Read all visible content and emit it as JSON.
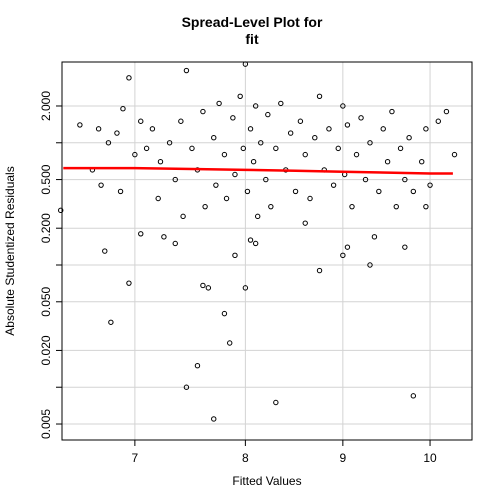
{
  "chart_data": {
    "type": "scatter",
    "title": "Spread-Level Plot for\nfit",
    "xlabel": "Fitted Values",
    "ylabel": "Absolute Studentized Residuals",
    "xlog": true,
    "ylog": true,
    "grid": true,
    "xlim": [
      6.41,
      10.52
    ],
    "ylim": [
      0.0037,
      4.58
    ],
    "xticks": [
      7,
      8,
      9,
      10
    ],
    "yticks": [
      {
        "value": 0.005,
        "label": "0.005"
      },
      {
        "value": 0.01,
        "label": null
      },
      {
        "value": 0.02,
        "label": "0.020"
      },
      {
        "value": 0.05,
        "label": "0.050"
      },
      {
        "value": 0.1,
        "label": null
      },
      {
        "value": 0.2,
        "label": "0.200"
      },
      {
        "value": 0.5,
        "label": "0.500"
      },
      {
        "value": 1,
        "label": null
      },
      {
        "value": 2,
        "label": "2.000"
      }
    ],
    "series": [
      {
        "type": "scatter",
        "color": "#000000",
        "x": [
          6.55,
          6.65,
          6.7,
          6.72,
          6.78,
          6.85,
          6.9,
          6.88,
          7.0,
          7.05,
          7.1,
          7.15,
          7.2,
          7.22,
          7.3,
          7.35,
          7.4,
          7.42,
          7.5,
          7.55,
          7.6,
          7.62,
          7.7,
          7.72,
          7.75,
          7.8,
          7.82,
          7.88,
          7.9,
          7.95,
          7.98,
          8.02,
          8.05,
          8.08,
          8.1,
          8.12,
          8.15,
          8.2,
          8.22,
          8.25,
          8.3,
          8.35,
          8.4,
          8.45,
          8.5,
          8.55,
          8.6,
          8.65,
          8.7,
          8.75,
          8.8,
          8.85,
          8.9,
          8.95,
          9.0,
          9.02,
          9.05,
          9.1,
          9.15,
          9.2,
          9.25,
          9.3,
          9.4,
          9.45,
          9.5,
          9.55,
          9.6,
          9.65,
          9.7,
          9.75,
          9.8,
          9.9,
          9.95,
          10.0,
          10.1,
          10.2,
          10.3,
          9.35,
          9.7,
          9.95,
          7.25,
          7.05,
          8.05,
          8.1,
          7.9,
          8.6,
          9.05,
          6.4,
          6.75,
          6.8,
          6.95,
          7.35,
          7.45,
          7.55,
          7.7,
          7.6,
          7.65,
          7.85,
          7.8,
          8.0,
          8.3,
          9.8,
          8.75,
          9.0,
          9.3,
          7.45,
          8.0,
          6.95
        ],
        "y": [
          1.4,
          0.6,
          1.3,
          0.45,
          1.0,
          1.2,
          1.9,
          0.4,
          0.8,
          1.5,
          0.9,
          1.3,
          0.35,
          0.7,
          1.0,
          0.5,
          1.5,
          0.25,
          0.9,
          0.6,
          1.8,
          0.3,
          1.1,
          0.45,
          2.1,
          0.8,
          0.35,
          1.6,
          0.55,
          2.4,
          0.9,
          0.4,
          1.3,
          0.7,
          2.0,
          0.25,
          1.0,
          0.5,
          1.7,
          0.3,
          0.9,
          2.1,
          0.6,
          1.2,
          0.4,
          1.5,
          0.8,
          0.35,
          1.1,
          2.4,
          0.6,
          1.3,
          0.45,
          0.9,
          2.0,
          0.55,
          1.4,
          0.3,
          0.8,
          1.6,
          0.5,
          1.0,
          0.4,
          1.3,
          0.7,
          1.8,
          0.3,
          0.9,
          0.5,
          1.1,
          0.4,
          0.7,
          1.3,
          0.45,
          1.5,
          1.8,
          0.8,
          0.17,
          0.14,
          0.3,
          0.17,
          0.18,
          0.16,
          0.15,
          0.12,
          0.22,
          0.14,
          0.28,
          0.13,
          0.034,
          0.071,
          0.15,
          0.01,
          0.015,
          0.0055,
          0.068,
          0.065,
          0.023,
          0.04,
          0.065,
          0.0075,
          0.0085,
          0.09,
          0.12,
          0.1,
          3.9,
          4.4,
          3.4
        ]
      },
      {
        "type": "line",
        "color": "#ff0000",
        "x": [
          6.42,
          7.0,
          7.5,
          8.0,
          8.5,
          9.0,
          9.5,
          10.0,
          10.28
        ],
        "y": [
          0.62,
          0.62,
          0.61,
          0.6,
          0.59,
          0.58,
          0.57,
          0.56,
          0.56
        ]
      }
    ]
  }
}
